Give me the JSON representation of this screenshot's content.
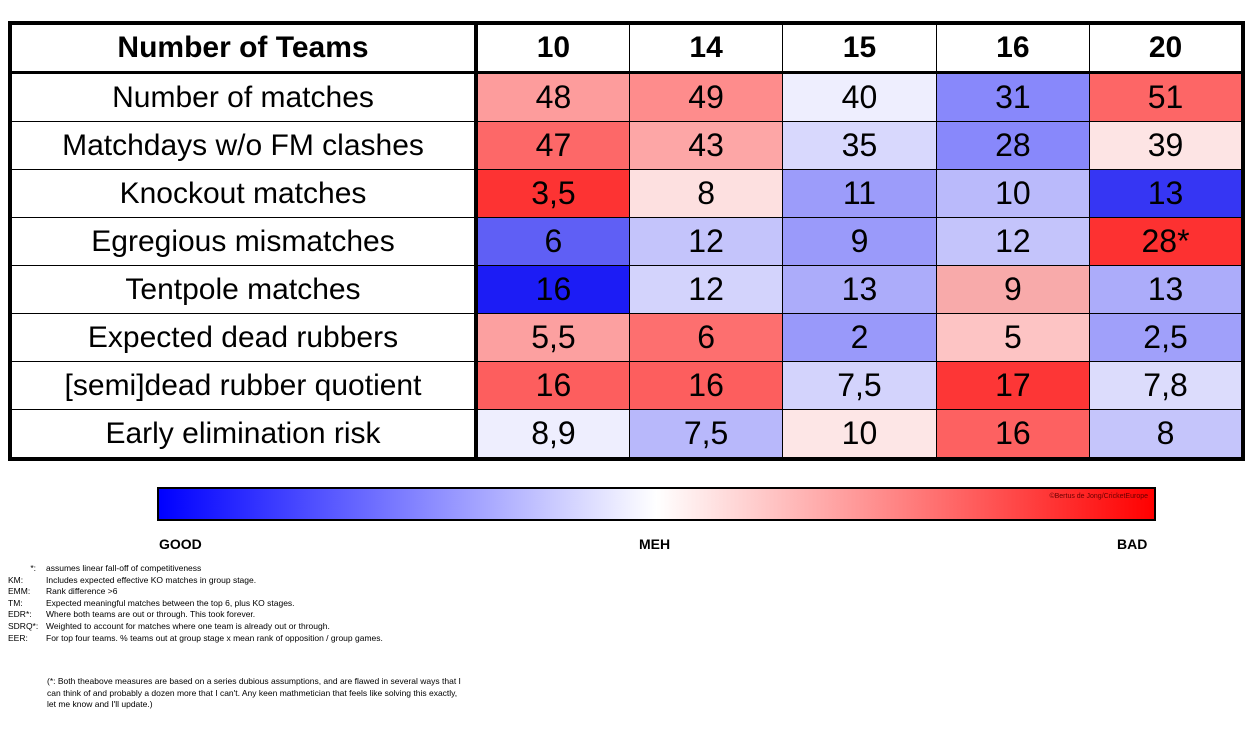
{
  "chart_data": {
    "type": "heatmap",
    "corner_label": "Number of Teams",
    "columns": [
      "10",
      "14",
      "15",
      "16",
      "20"
    ],
    "rows": [
      {
        "label": "Number of matches",
        "values": [
          "48",
          "49",
          "40",
          "31",
          "51"
        ],
        "colors": [
          "#fd9c9c",
          "#fe8c8c",
          "#eeeefe",
          "#8888fb",
          "#fd6666"
        ]
      },
      {
        "label": "Matchdays w/o FM clashes",
        "values": [
          "47",
          "43",
          "35",
          "28",
          "39"
        ],
        "colors": [
          "#fd6868",
          "#fda6a6",
          "#d8d8fd",
          "#8888fb",
          "#fde4e4"
        ]
      },
      {
        "label": "Knockout matches",
        "values": [
          "3,5",
          "8",
          "11",
          "10",
          "13"
        ],
        "colors": [
          "#fd3333",
          "#fde0e0",
          "#9c9cfa",
          "#babafb",
          "#3636f3"
        ]
      },
      {
        "label": "Egregious mismatches",
        "values": [
          "6",
          "12",
          "9",
          "12",
          "28*"
        ],
        "colors": [
          "#5f5ff5",
          "#c4c4fb",
          "#9a9afa",
          "#c4c4fb",
          "#fd3131"
        ]
      },
      {
        "label": "Tentpole matches",
        "values": [
          "16",
          "12",
          "13",
          "9",
          "13"
        ],
        "colors": [
          "#1c1cf5",
          "#d3d3fc",
          "#acacfa",
          "#f8aaaa",
          "#acacfa"
        ]
      },
      {
        "label": "Expected dead rubbers",
        "values": [
          "5,5",
          "6",
          "2",
          "5",
          "2,5"
        ],
        "colors": [
          "#fca0a0",
          "#fd6f6f",
          "#9999fa",
          "#fdc4c4",
          "#a0a0fa"
        ]
      },
      {
        "label": "[semi]dead rubber quotient",
        "values": [
          "16",
          "16",
          "7,5",
          "17",
          "7,8"
        ],
        "colors": [
          "#fd5e5e",
          "#fd5e5e",
          "#d3d3fc",
          "#fd3636",
          "#dcdcfc"
        ]
      },
      {
        "label": "Early elimination risk",
        "values": [
          "8,9",
          "7,5",
          "10",
          "16",
          "8"
        ],
        "colors": [
          "#eeeefe",
          "#b8b8fb",
          "#fde6e6",
          "#fd6161",
          "#c5c5fb"
        ]
      }
    ],
    "scale": {
      "colors": [
        "#0000ff",
        "#ffffff",
        "#ff0000"
      ],
      "labels": [
        "GOOD",
        "MEH",
        "BAD"
      ],
      "credit": "©Bertus de Jong/CricketEurope"
    }
  },
  "notes": [
    {
      "key": "*:",
      "text": "assumes linear fall-off of competitiveness"
    },
    {
      "key": "KM:",
      "text": "Includes expected effective KO matches in group stage."
    },
    {
      "key": "EMM:",
      "text": "Rank difference >6"
    },
    {
      "key": "TM:",
      "text": "Expected meaningful matches between the top 6, plus KO stages."
    },
    {
      "key": "EDR*:",
      "text": "Where both teams are out or through. This took forever."
    },
    {
      "key": "SDRQ*:",
      "text": "Weighted to account for matches where one team is already out or through."
    },
    {
      "key": "EER:",
      "text": "For top four teams. % teams out at group stage x mean rank of opposition / group games."
    }
  ],
  "footnote": "(*: Both theabove measures are based on a series dubious assumptions, and are flawed in several ways that I can think of and probably a dozen more that I can't. Any keen mathmetician that feels like solving this exactly, let me know and I'll update.)"
}
